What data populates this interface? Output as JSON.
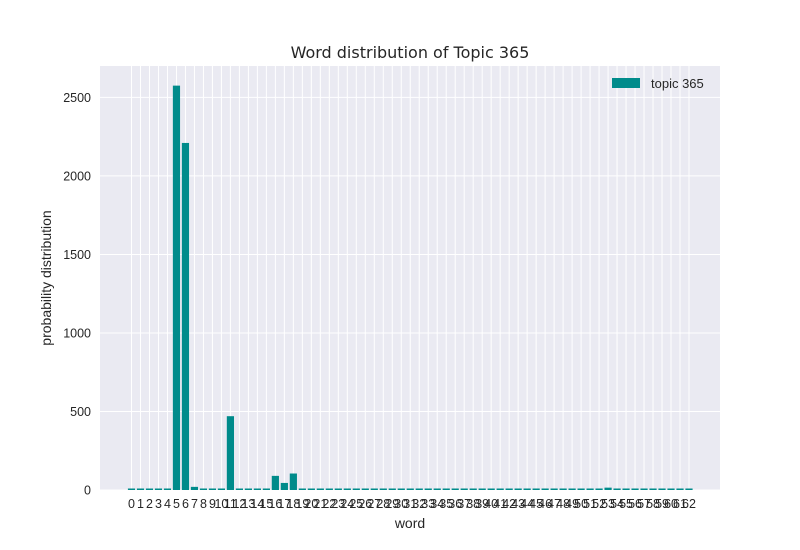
{
  "chart_data": {
    "type": "bar",
    "title": "Word distribution of Topic 365",
    "xlabel": "word",
    "ylabel": "probability distribution",
    "categories": [
      "0",
      "1",
      "2",
      "3",
      "4",
      "5",
      "6",
      "7",
      "8",
      "9",
      "10",
      "11",
      "12",
      "13",
      "14",
      "15",
      "16",
      "17",
      "18",
      "19",
      "20",
      "21",
      "22",
      "23",
      "24",
      "25",
      "26",
      "27",
      "28",
      "29",
      "30",
      "31",
      "32",
      "33",
      "34",
      "35",
      "36",
      "37",
      "38",
      "39",
      "40",
      "41",
      "42",
      "43",
      "44",
      "45",
      "46",
      "47",
      "48",
      "49",
      "50",
      "51",
      "52",
      "53",
      "54",
      "55",
      "56",
      "57",
      "58",
      "59",
      "60",
      "61",
      "62"
    ],
    "series": [
      {
        "name": "topic 365",
        "color": "#008b8b",
        "values": [
          0,
          0,
          0,
          0,
          0,
          2575,
          2210,
          20,
          0,
          0,
          0,
          470,
          0,
          0,
          0,
          0,
          90,
          45,
          105,
          0,
          0,
          0,
          0,
          0,
          0,
          0,
          0,
          0,
          0,
          0,
          0,
          0,
          0,
          0,
          0,
          0,
          0,
          0,
          0,
          0,
          0,
          0,
          0,
          0,
          0,
          0,
          0,
          0,
          0,
          0,
          0,
          0,
          0,
          15,
          0,
          0,
          0,
          0,
          0,
          0,
          0,
          0,
          0
        ]
      }
    ],
    "ylim": [
      0,
      2700
    ],
    "yticks": [
      0,
      500,
      1000,
      1500,
      2000,
      2500
    ],
    "grid": true,
    "legend_position": "top-right",
    "background_color": "#eaeaf2"
  }
}
